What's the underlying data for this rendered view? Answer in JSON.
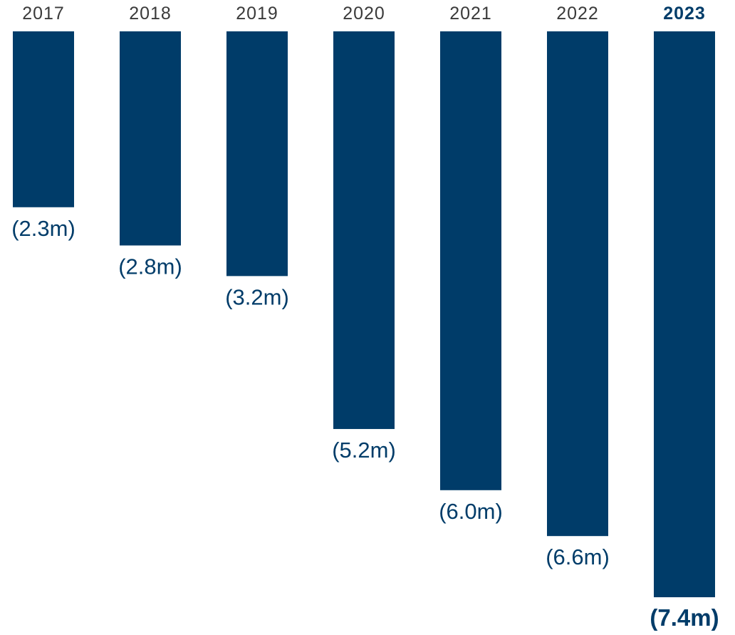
{
  "chart_data": {
    "type": "bar",
    "orientation": "vertical-downward",
    "categories": [
      "2017",
      "2018",
      "2019",
      "2020",
      "2021",
      "2022",
      "2023"
    ],
    "values": [
      2.3,
      2.8,
      3.2,
      5.2,
      6.0,
      6.6,
      7.4
    ],
    "data_labels": [
      "(2.3m)",
      "(2.8m)",
      "(3.2m)",
      "(5.2m)",
      "(6.0m)",
      "(6.6m)",
      "(7.4m)"
    ],
    "highlighted_category": "2023",
    "title": "",
    "xlabel": "",
    "ylabel": "",
    "grid": false,
    "legend": "none",
    "colors": {
      "bar": "#003c69",
      "category_label": "#3a3a3a",
      "value_label": "#003c69"
    }
  }
}
